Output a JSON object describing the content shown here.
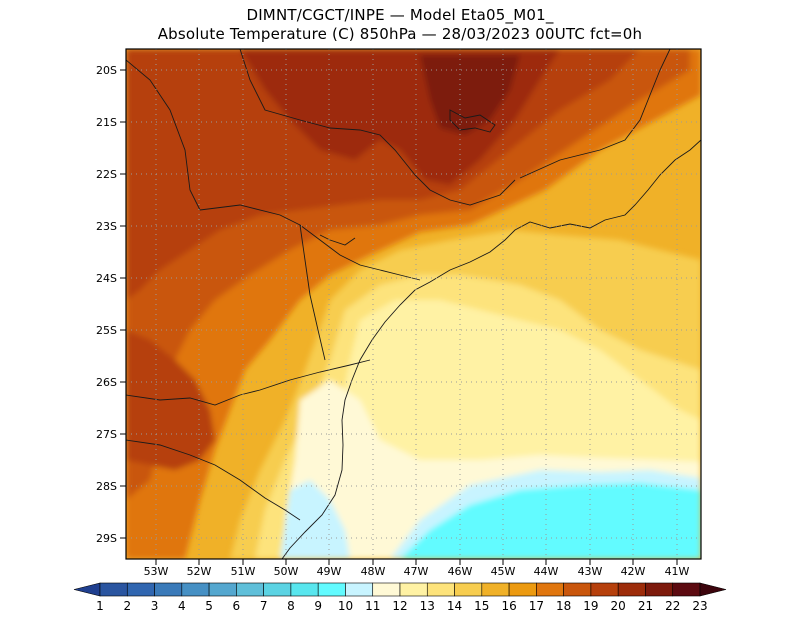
{
  "header": {
    "line1": "DIMNT/CGCT/INPE —  Model Eta05_M01_",
    "line2": "Absolute Temperature (C) 850hPa —  28/03/2023 00UTC fct=0h"
  },
  "axes": {
    "lat_labels": [
      "20S",
      "21S",
      "22S",
      "23S",
      "24S",
      "25S",
      "26S",
      "27S",
      "28S",
      "29S"
    ],
    "lon_labels": [
      "53W",
      "52W",
      "51W",
      "50W",
      "49W",
      "48W",
      "47W",
      "46W",
      "45W",
      "44W",
      "43W",
      "42W",
      "41W"
    ]
  },
  "colorbar": {
    "labels": [
      "1",
      "2",
      "3",
      "4",
      "5",
      "6",
      "7",
      "8",
      "9",
      "10",
      "11",
      "12",
      "13",
      "14",
      "15",
      "16",
      "17",
      "18",
      "19",
      "20",
      "21",
      "22",
      "23"
    ],
    "colors": [
      "#1f3f8f",
      "#2a55a0",
      "#3066b0",
      "#3a7ab9",
      "#4690c4",
      "#54a7cf",
      "#5fbfd9",
      "#5bd3e3",
      "#58e6ee",
      "#62fbff",
      "#c8f4ff",
      "#fff9d6",
      "#fff2a4",
      "#fde37b",
      "#f7cd4f",
      "#f0b128",
      "#ec9a10",
      "#e0760e",
      "#c9560c",
      "#b6400c",
      "#9d2c0a",
      "#7d1a0c",
      "#5c0a10",
      "#3c040c"
    ]
  },
  "colors": {
    "frame": "#000000",
    "grid": "#9a9a9a",
    "coast": "#1a1a1a",
    "ocean_cold": "#5ffbff",
    "pale": "#fff6c8"
  }
}
